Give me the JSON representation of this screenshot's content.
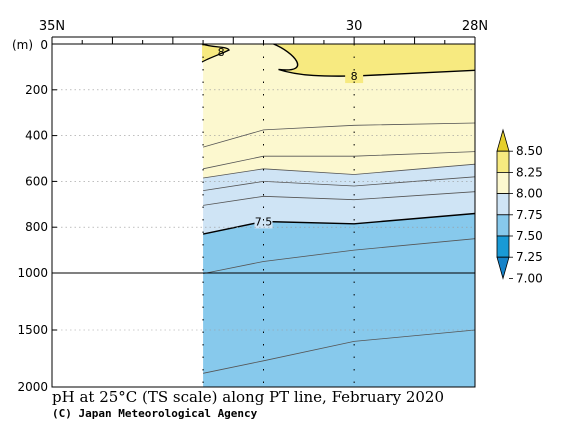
{
  "chart_data": {
    "type": "contour",
    "title": "pH at 25°C (TS scale) along PT line, February 2020",
    "credit": "(C) Japan Meteorological Agency",
    "y_unit_label": "(m)",
    "x_axis": {
      "ticks": [
        {
          "lat": 35,
          "label": "35N"
        },
        {
          "lat": 30,
          "label": "30"
        },
        {
          "lat": 28,
          "label": "28N"
        }
      ],
      "range": [
        35,
        28
      ]
    },
    "y_axis": {
      "upper_ticks": [
        0,
        200,
        400,
        600,
        800,
        1000
      ],
      "lower_ticks": [
        1500,
        2000
      ],
      "upper_range": [
        0,
        1000
      ],
      "lower_range": [
        1000,
        2000
      ]
    },
    "stations_lat": [
      32.5,
      31.5,
      30.0,
      28.0
    ],
    "colorbar": {
      "levels": [
        "8.50",
        "8.25",
        "8.00",
        "7.75",
        "7.50",
        "7.25",
        "7.00"
      ],
      "colors": [
        "#e6cf2c",
        "#f7ea80",
        "#fcf8cf",
        "#cfe4f5",
        "#87c9ec",
        "#199ad6",
        "#1683c9"
      ]
    },
    "colors": {
      "fill_8_00": "#f7ea80",
      "fill_7_75": "#fcf8cf",
      "fill_7_50": "#cfe4f5",
      "fill_7_25": "#87c9ec"
    },
    "contours": [
      {
        "level": "8",
        "label": "8",
        "bold": true,
        "depths": [
          5,
          120,
          140,
          115
        ]
      },
      {
        "level": "7.9",
        "depths": [
          450,
          375,
          355,
          345
        ]
      },
      {
        "level": "7.8",
        "depths": [
          545,
          490,
          490,
          470
        ]
      },
      {
        "level": "7.75",
        "depths": [
          585,
          545,
          570,
          525
        ]
      },
      {
        "level": "7.7",
        "depths": [
          640,
          600,
          620,
          580
        ]
      },
      {
        "level": "7.6",
        "depths": [
          705,
          665,
          680,
          645
        ]
      },
      {
        "level": "7.5",
        "label": "7.5",
        "bold": true,
        "depths": [
          830,
          775,
          785,
          740
        ]
      },
      {
        "level": "7.4",
        "depths": [
          1005,
          950,
          900,
          850
        ]
      },
      {
        "level": "7.3",
        "depths": [
          1880,
          1770,
          1600,
          1500
        ]
      }
    ]
  }
}
